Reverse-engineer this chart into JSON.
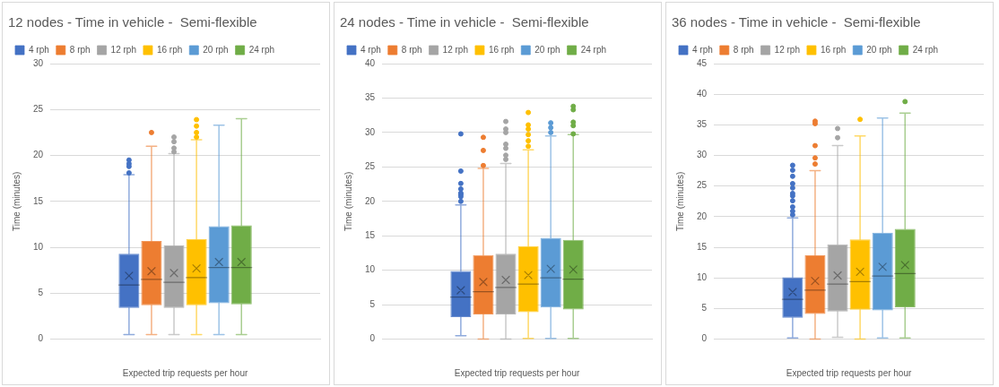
{
  "chart_data": [
    {
      "type": "box",
      "title": "12 nodes - Time in vehicle -  Semi-flexible",
      "xlabel": "Expected trip requests per hour",
      "ylabel": "Time (minutes)",
      "categories": [
        null
      ],
      "ylim": [
        0,
        30
      ],
      "yticks": [
        0,
        5,
        10,
        15,
        20,
        25,
        30
      ],
      "grid": "y",
      "legend": "top",
      "series": [
        {
          "name": "4 rph",
          "color": "#4472c4",
          "boxes": [
            {
              "low": 0.5,
              "q1": 3.4,
              "median": 5.9,
              "q3": 9.3,
              "high": 17.9,
              "mean": 6.9,
              "outliers": [
                18.1,
                18.8,
                19.1,
                19.5
              ]
            }
          ]
        },
        {
          "name": "8 rph",
          "color": "#ed7d31",
          "boxes": [
            {
              "low": 0.5,
              "q1": 3.7,
              "median": 6.5,
              "q3": 10.7,
              "high": 21,
              "mean": 7.4,
              "outliers": [
                22.5
              ]
            }
          ]
        },
        {
          "name": "12 rph",
          "color": "#a5a5a5",
          "boxes": [
            {
              "low": 0.5,
              "q1": 3.4,
              "median": 6.2,
              "q3": 10.2,
              "high": 20.2,
              "mean": 7.2,
              "outliers": [
                20.4,
                20.8,
                21.5,
                22
              ]
            }
          ]
        },
        {
          "name": "16 rph",
          "color": "#ffc000",
          "boxes": [
            {
              "low": 0.5,
              "q1": 3.7,
              "median": 6.7,
              "q3": 10.9,
              "high": 21.7,
              "mean": 7.7,
              "outliers": [
                22,
                22.5,
                23.2,
                23.9
              ]
            }
          ]
        },
        {
          "name": "20 rph",
          "color": "#5b9bd5",
          "boxes": [
            {
              "low": 0.5,
              "q1": 3.9,
              "median": 7.8,
              "q3": 12.3,
              "high": 23.3,
              "mean": 8.4
            }
          ]
        },
        {
          "name": "24 rph",
          "color": "#70ad47",
          "boxes": [
            {
              "low": 0.5,
              "q1": 3.8,
              "median": 7.8,
              "q3": 12.4,
              "high": 24,
              "mean": 8.4
            }
          ]
        }
      ]
    },
    {
      "type": "box",
      "title": "24 nodes - Time in vehicle -  Semi-flexible",
      "xlabel": "Expected trip requests per hour",
      "ylabel": "Time (minutes)",
      "categories": [
        null
      ],
      "ylim": [
        0,
        40
      ],
      "yticks": [
        0,
        5,
        10,
        15,
        20,
        25,
        30,
        35,
        40
      ],
      "grid": "y",
      "legend": "top",
      "series": [
        {
          "name": "4 rph",
          "color": "#4472c4",
          "boxes": [
            {
              "low": 0.5,
              "q1": 3.2,
              "median": 6.1,
              "q3": 9.9,
              "high": 19.5,
              "mean": 7.1,
              "outliers": [
                20,
                20.7,
                21,
                21.2,
                21.8,
                22.6,
                24.4,
                29.8
              ]
            }
          ]
        },
        {
          "name": "8 rph",
          "color": "#ed7d31",
          "boxes": [
            {
              "low": 0,
              "q1": 3.6,
              "median": 6.9,
              "q3": 12.2,
              "high": 24.8,
              "mean": 8.3,
              "outliers": [
                25.2,
                27.4,
                29.3
              ]
            }
          ]
        },
        {
          "name": "12 rph",
          "color": "#a5a5a5",
          "boxes": [
            {
              "low": 0,
              "q1": 3.6,
              "median": 7.5,
              "q3": 12.4,
              "high": 25.5,
              "mean": 8.6,
              "outliers": [
                26.1,
                26.7,
                27.7,
                28.3,
                30,
                30.5,
                31.6
              ]
            }
          ]
        },
        {
          "name": "16 rph",
          "color": "#ffc000",
          "boxes": [
            {
              "low": 0.1,
              "q1": 3.9,
              "median": 8,
              "q3": 13.5,
              "high": 27.5,
              "mean": 9.3,
              "outliers": [
                28,
                28.8,
                29.7,
                30.5,
                31.1,
                32.9
              ]
            }
          ]
        },
        {
          "name": "20 rph",
          "color": "#5b9bd5",
          "boxes": [
            {
              "low": 0.1,
              "q1": 4.6,
              "median": 8.9,
              "q3": 14.7,
              "high": 29.5,
              "mean": 10.2,
              "outliers": [
                30,
                30.7,
                31.4
              ]
            }
          ]
        },
        {
          "name": "24 rph",
          "color": "#70ad47",
          "boxes": [
            {
              "low": 0.1,
              "q1": 4.3,
              "median": 8.7,
              "q3": 14.4,
              "high": 29.7,
              "mean": 10.1,
              "outliers": [
                29.8,
                31,
                31.5,
                33.3,
                33.8
              ]
            }
          ]
        }
      ]
    },
    {
      "type": "box",
      "title": "36 nodes - Time in vehicle -  Semi-flexible",
      "xlabel": "Expected trip requests per hour",
      "ylabel": "Time (minutes)",
      "categories": [
        null
      ],
      "ylim": [
        0,
        45
      ],
      "yticks": [
        0,
        5,
        10,
        15,
        20,
        25,
        30,
        35,
        40,
        45
      ],
      "grid": "y",
      "legend": "top",
      "series": [
        {
          "name": "4 rph",
          "color": "#4472c4",
          "boxes": [
            {
              "low": 0.2,
              "q1": 3.5,
              "median": 6.5,
              "q3": 10.1,
              "high": 19.8,
              "mean": 7.7,
              "outliers": [
                20.3,
                20.9,
                21.6,
                22.6,
                23.4,
                23.8,
                24.7,
                25.4,
                26.6,
                27.6,
                28.4
              ]
            }
          ]
        },
        {
          "name": "8 rph",
          "color": "#ed7d31",
          "boxes": [
            {
              "low": 0,
              "q1": 4.1,
              "median": 8,
              "q3": 13.7,
              "high": 27.5,
              "mean": 9.5,
              "outliers": [
                28.6,
                29.6,
                31.6,
                35.2,
                35.6
              ]
            }
          ]
        },
        {
          "name": "12 rph",
          "color": "#a5a5a5",
          "boxes": [
            {
              "low": 0.3,
              "q1": 4.5,
              "median": 9,
              "q3": 15.5,
              "high": 31.6,
              "mean": 10.4,
              "outliers": [
                32.9,
                34.4
              ]
            }
          ]
        },
        {
          "name": "16 rph",
          "color": "#ffc000",
          "boxes": [
            {
              "low": 0,
              "q1": 4.8,
              "median": 9.4,
              "q3": 16.3,
              "high": 33.2,
              "mean": 11,
              "outliers": [
                35.9
              ]
            }
          ]
        },
        {
          "name": "20 rph",
          "color": "#5b9bd5",
          "boxes": [
            {
              "low": 0.2,
              "q1": 4.7,
              "median": 10.3,
              "q3": 17.4,
              "high": 36.1,
              "mean": 11.8
            }
          ]
        },
        {
          "name": "24 rph",
          "color": "#70ad47",
          "boxes": [
            {
              "low": 0.2,
              "q1": 5.2,
              "median": 10.7,
              "q3": 18,
              "high": 36.9,
              "mean": 12.1,
              "outliers": [
                38.8
              ]
            }
          ]
        }
      ]
    }
  ]
}
